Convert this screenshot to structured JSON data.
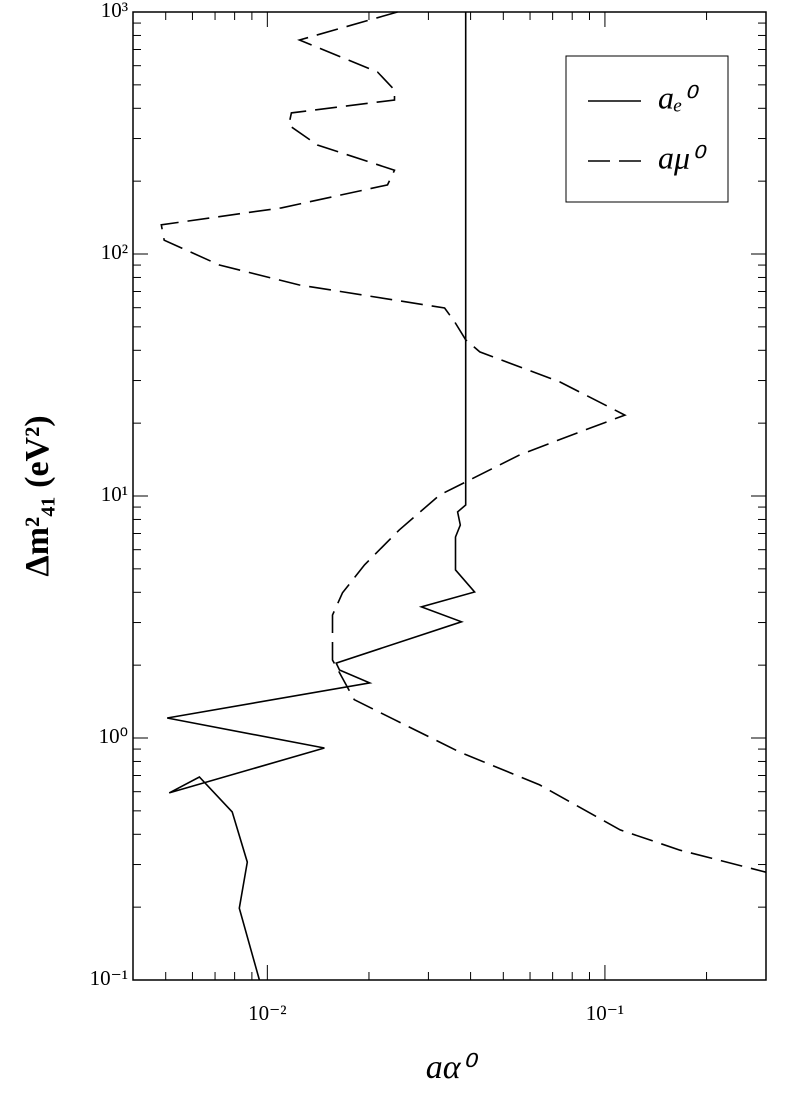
{
  "chart_data": {
    "type": "line",
    "xlabel": "aα⁰",
    "ylabel": "Δm²₄₁  (eV²)",
    "xscale": "log",
    "yscale": "log",
    "xlim": [
      0.004,
      0.3
    ],
    "ylim": [
      0.1,
      1000
    ],
    "xticks": [
      {
        "value": 0.01,
        "label": "10⁻²"
      },
      {
        "value": 0.1,
        "label": "10⁻¹"
      }
    ],
    "yticks": [
      {
        "value": 0.1,
        "label": "10⁻¹"
      },
      {
        "value": 1,
        "label": "10⁰"
      },
      {
        "value": 10,
        "label": "10¹"
      },
      {
        "value": 100,
        "label": "10²"
      },
      {
        "value": 1000,
        "label": "10³"
      }
    ],
    "legend": "upper right",
    "series": [
      {
        "name": "aₑ⁰",
        "color": "#000000",
        "dash": "solid",
        "x": [
          0.00947,
          0.00826,
          0.00872,
          0.00787,
          0.00629,
          0.00512,
          0.01476,
          0.00505,
          0.0201,
          0.01636,
          0.016,
          0.0376,
          0.0286,
          0.0411,
          0.0361,
          0.0361,
          0.0373,
          0.0366,
          0.0387,
          0.0387
        ],
        "values": [
          0.1,
          0.198,
          0.307,
          0.495,
          0.69,
          0.593,
          0.909,
          1.21,
          1.69,
          1.91,
          2.04,
          3.02,
          3.48,
          4.01,
          4.95,
          6.77,
          7.59,
          8.6,
          9.18,
          1000
        ]
      },
      {
        "name": "aμ⁰",
        "color": "#000000",
        "dash": "dashed",
        "x": [
          0.0243,
          0.01245,
          0.0212,
          0.0238,
          0.0238,
          0.0214,
          0.01178,
          0.01158,
          0.01407,
          0.0238,
          0.0227,
          0.011,
          0.00485,
          0.00495,
          0.00721,
          0.0124,
          0.0335,
          0.0359,
          0.0387,
          0.0426,
          0.0735,
          0.1146,
          0.0843,
          0.056,
          0.0324,
          0.0246,
          0.0194,
          0.0167,
          0.0156,
          0.0156,
          0.0181,
          0.0238,
          0.0371,
          0.0641,
          0.111,
          0.167,
          0.3
        ],
        "values": [
          1000,
          766,
          565,
          476,
          433,
          425,
          383,
          341,
          282,
          222,
          193,
          155,
          132,
          114,
          90.1,
          74.5,
          59.8,
          52.4,
          44.2,
          39.4,
          29.6,
          21.6,
          18.4,
          14.8,
          10.1,
          7.24,
          5.19,
          3.98,
          3.22,
          2.1,
          1.44,
          1.19,
          0.875,
          0.64,
          0.417,
          0.344,
          0.279
        ]
      }
    ]
  }
}
